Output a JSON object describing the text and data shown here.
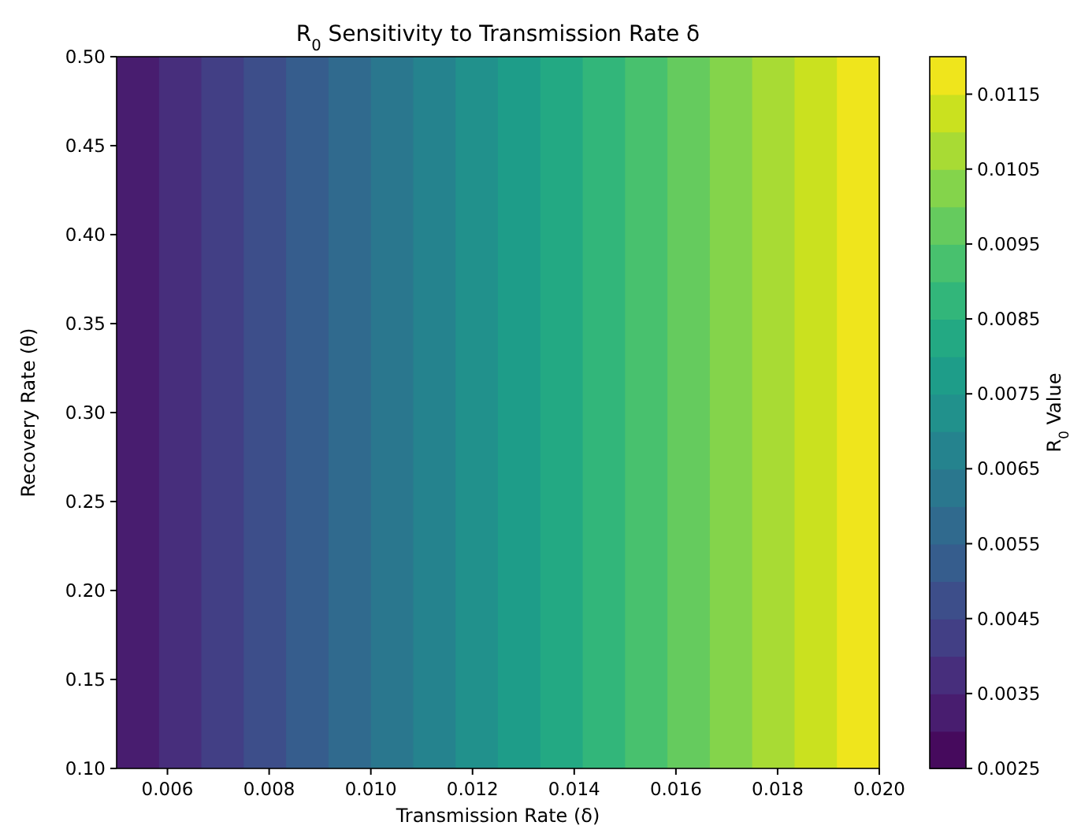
{
  "chart_data": {
    "type": "heatmap",
    "title": "R$_{0}$ Sensitivity to Transmission Rate δ",
    "xlabel": "Transmission Rate (δ)",
    "ylabel": "Recovery Rate (θ)",
    "clabel": "R$_{0}$ Value",
    "x": [
      0.005417,
      0.00625,
      0.007083,
      0.007917,
      0.00875,
      0.009583,
      0.010417,
      0.01125,
      0.012083,
      0.012917,
      0.01375,
      0.014583,
      0.015417,
      0.01625,
      0.017083,
      0.017917,
      0.01875,
      0.019583
    ],
    "cells": [
      [
        0.00325,
        0.00375,
        0.00425,
        0.00475,
        0.00525,
        0.00575,
        0.00625,
        0.00675,
        0.00725,
        0.00775,
        0.00825,
        0.00875,
        0.00925,
        0.00975,
        0.01025,
        0.01075,
        0.01125,
        0.01175
      ]
    ],
    "xlim": [
      0.005,
      0.02
    ],
    "xticks": [
      {
        "value": 0.006,
        "label": "0.006"
      },
      {
        "value": 0.008,
        "label": "0.008"
      },
      {
        "value": 0.01,
        "label": "0.010"
      },
      {
        "value": 0.012,
        "label": "0.012"
      },
      {
        "value": 0.014,
        "label": "0.014"
      },
      {
        "value": 0.016,
        "label": "0.016"
      },
      {
        "value": 0.018,
        "label": "0.018"
      },
      {
        "value": 0.02,
        "label": "0.020"
      }
    ],
    "ylim": [
      0.1,
      0.5
    ],
    "yticks": [
      {
        "value": 0.1,
        "label": "0.10"
      },
      {
        "value": 0.15,
        "label": "0.15"
      },
      {
        "value": 0.2,
        "label": "0.20"
      },
      {
        "value": 0.25,
        "label": "0.25"
      },
      {
        "value": 0.3,
        "label": "0.30"
      },
      {
        "value": 0.35,
        "label": "0.35"
      },
      {
        "value": 0.4,
        "label": "0.40"
      },
      {
        "value": 0.45,
        "label": "0.45"
      },
      {
        "value": 0.5,
        "label": "0.50"
      }
    ],
    "clim": [
      0.0025,
      0.012
    ],
    "cticks": [
      0.0025,
      0.0035,
      0.0045,
      0.0055,
      0.0065,
      0.0075,
      0.0085,
      0.0095,
      0.0105,
      0.0115
    ]
  }
}
